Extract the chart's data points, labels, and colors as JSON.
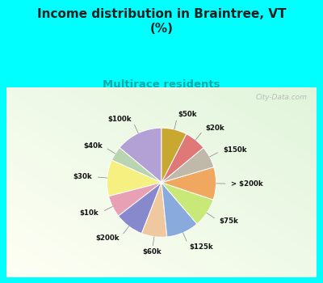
{
  "title": "Income distribution in Braintree, VT\n(%)",
  "subtitle": "Multirace residents",
  "background_color": "#00FFFF",
  "labels": [
    "$100k",
    "$40k",
    "$30k",
    "$10k",
    "$200k",
    "$60k",
    "$125k",
    "$75k",
    "> $200k",
    "$150k",
    "$20k",
    "$50k"
  ],
  "values": [
    13,
    4,
    10,
    6,
    8,
    7,
    9,
    8,
    9,
    6,
    6,
    7
  ],
  "colors": [
    "#b3a0d4",
    "#b8d4b0",
    "#f5f080",
    "#e8a0b4",
    "#8888cc",
    "#f0c8a0",
    "#88aadd",
    "#c8e878",
    "#f0a860",
    "#c0b8a8",
    "#e07878",
    "#c8a830"
  ],
  "title_fontsize": 11,
  "subtitle_fontsize": 9.5,
  "subtitle_color": "#00aaaa",
  "title_color": "#222222",
  "watermark": "City-Data.com"
}
